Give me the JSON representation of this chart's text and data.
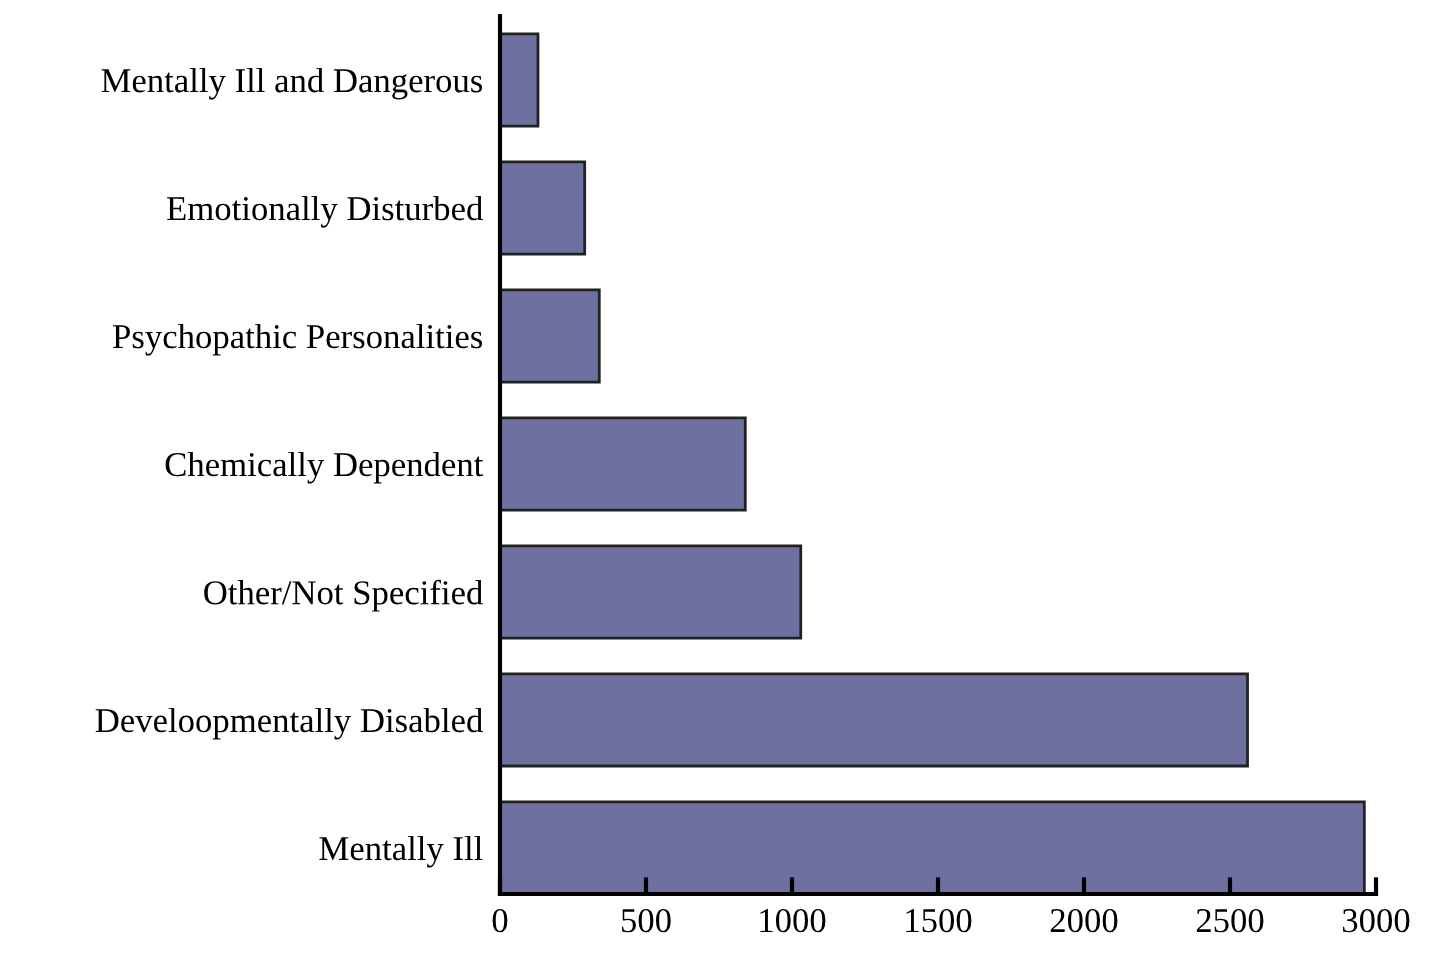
{
  "chart_data": {
    "type": "bar",
    "orientation": "horizontal",
    "categories": [
      "Mentally Ill and Dangerous",
      "Emotionally Disturbed",
      "Psychopathic Personalities",
      "Chemically Dependent",
      "Other/Not Specified",
      "Develoopmentally Disabled",
      "Mentally Ill"
    ],
    "values": [
      130,
      290,
      340,
      840,
      1030,
      2560,
      2960
    ],
    "color": "#6e71a0",
    "xlim": [
      0,
      3000
    ],
    "xticks": [
      0,
      500,
      1000,
      1500,
      2000,
      2500,
      3000
    ],
    "grid": false
  }
}
